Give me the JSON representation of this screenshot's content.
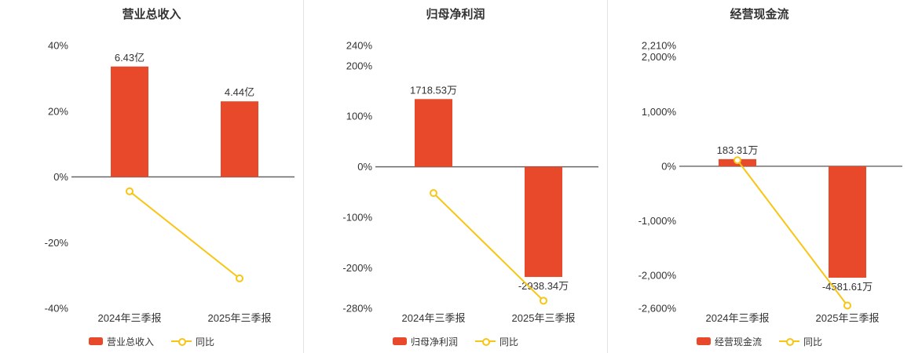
{
  "page": {
    "background": "#ffffff"
  },
  "colors": {
    "bar": "#e8492a",
    "line": "#f8c512",
    "axis": "#666666",
    "label": "#333333",
    "title": "#333333",
    "divider": "#e2e2e2",
    "marker_fill": "#ffffff"
  },
  "chart_data": [
    {
      "type": "bar+line",
      "title": "营业总收入",
      "categories": [
        "2024年三季报",
        "2025年三季报"
      ],
      "bar_series": {
        "name": "营业总收入",
        "labels": [
          "6.43亿",
          "4.44亿"
        ],
        "pct_values": [
          33.6,
          23.0
        ]
      },
      "line_series": {
        "name": "同比",
        "pct_values": [
          -4.4,
          -30.9
        ]
      },
      "ylim": [
        -40,
        40
      ],
      "yticks": [
        {
          "v": 40,
          "label": "40%"
        },
        {
          "v": 20,
          "label": "20%"
        },
        {
          "v": 0,
          "label": "0%"
        },
        {
          "v": -20,
          "label": "-20%"
        },
        {
          "v": -40,
          "label": "-40%"
        }
      ],
      "grid": false,
      "legend_position": "bottom"
    },
    {
      "type": "bar+line",
      "title": "归母净利润",
      "categories": [
        "2024年三季报",
        "2025年三季报"
      ],
      "bar_series": {
        "name": "归母净利润",
        "labels": [
          "1718.53万",
          "-2938.34万"
        ],
        "pct_values": [
          134,
          -218
        ]
      },
      "line_series": {
        "name": "同比",
        "pct_values": [
          -52,
          -265
        ]
      },
      "ylim": [
        -280,
        240
      ],
      "yticks": [
        {
          "v": 240,
          "label": "240%"
        },
        {
          "v": 200,
          "label": "200%"
        },
        {
          "v": 100,
          "label": "100%"
        },
        {
          "v": 0,
          "label": "0%"
        },
        {
          "v": -100,
          "label": "-100%"
        },
        {
          "v": -200,
          "label": "-200%"
        },
        {
          "v": -280,
          "label": "-280%"
        }
      ],
      "grid": false,
      "legend_position": "bottom"
    },
    {
      "type": "bar+line",
      "title": "经营现金流",
      "categories": [
        "2024年三季报",
        "2025年三季报"
      ],
      "bar_series": {
        "name": "经营现金流",
        "labels": [
          "183.31万",
          "-4581.61万"
        ],
        "pct_values": [
          130,
          -2040
        ]
      },
      "line_series": {
        "name": "同比",
        "pct_values": [
          110,
          -2550
        ]
      },
      "ylim": [
        -2600,
        2210
      ],
      "yticks": [
        {
          "v": 2210,
          "label": "2,210%"
        },
        {
          "v": 2000,
          "label": "2,000%"
        },
        {
          "v": 1000,
          "label": "1,000%"
        },
        {
          "v": 0,
          "label": "0%"
        },
        {
          "v": -1000,
          "label": "-1,000%"
        },
        {
          "v": -2000,
          "label": "-2,000%"
        },
        {
          "v": -2600,
          "label": "-2,600%"
        }
      ],
      "grid": false,
      "legend_position": "bottom"
    }
  ]
}
